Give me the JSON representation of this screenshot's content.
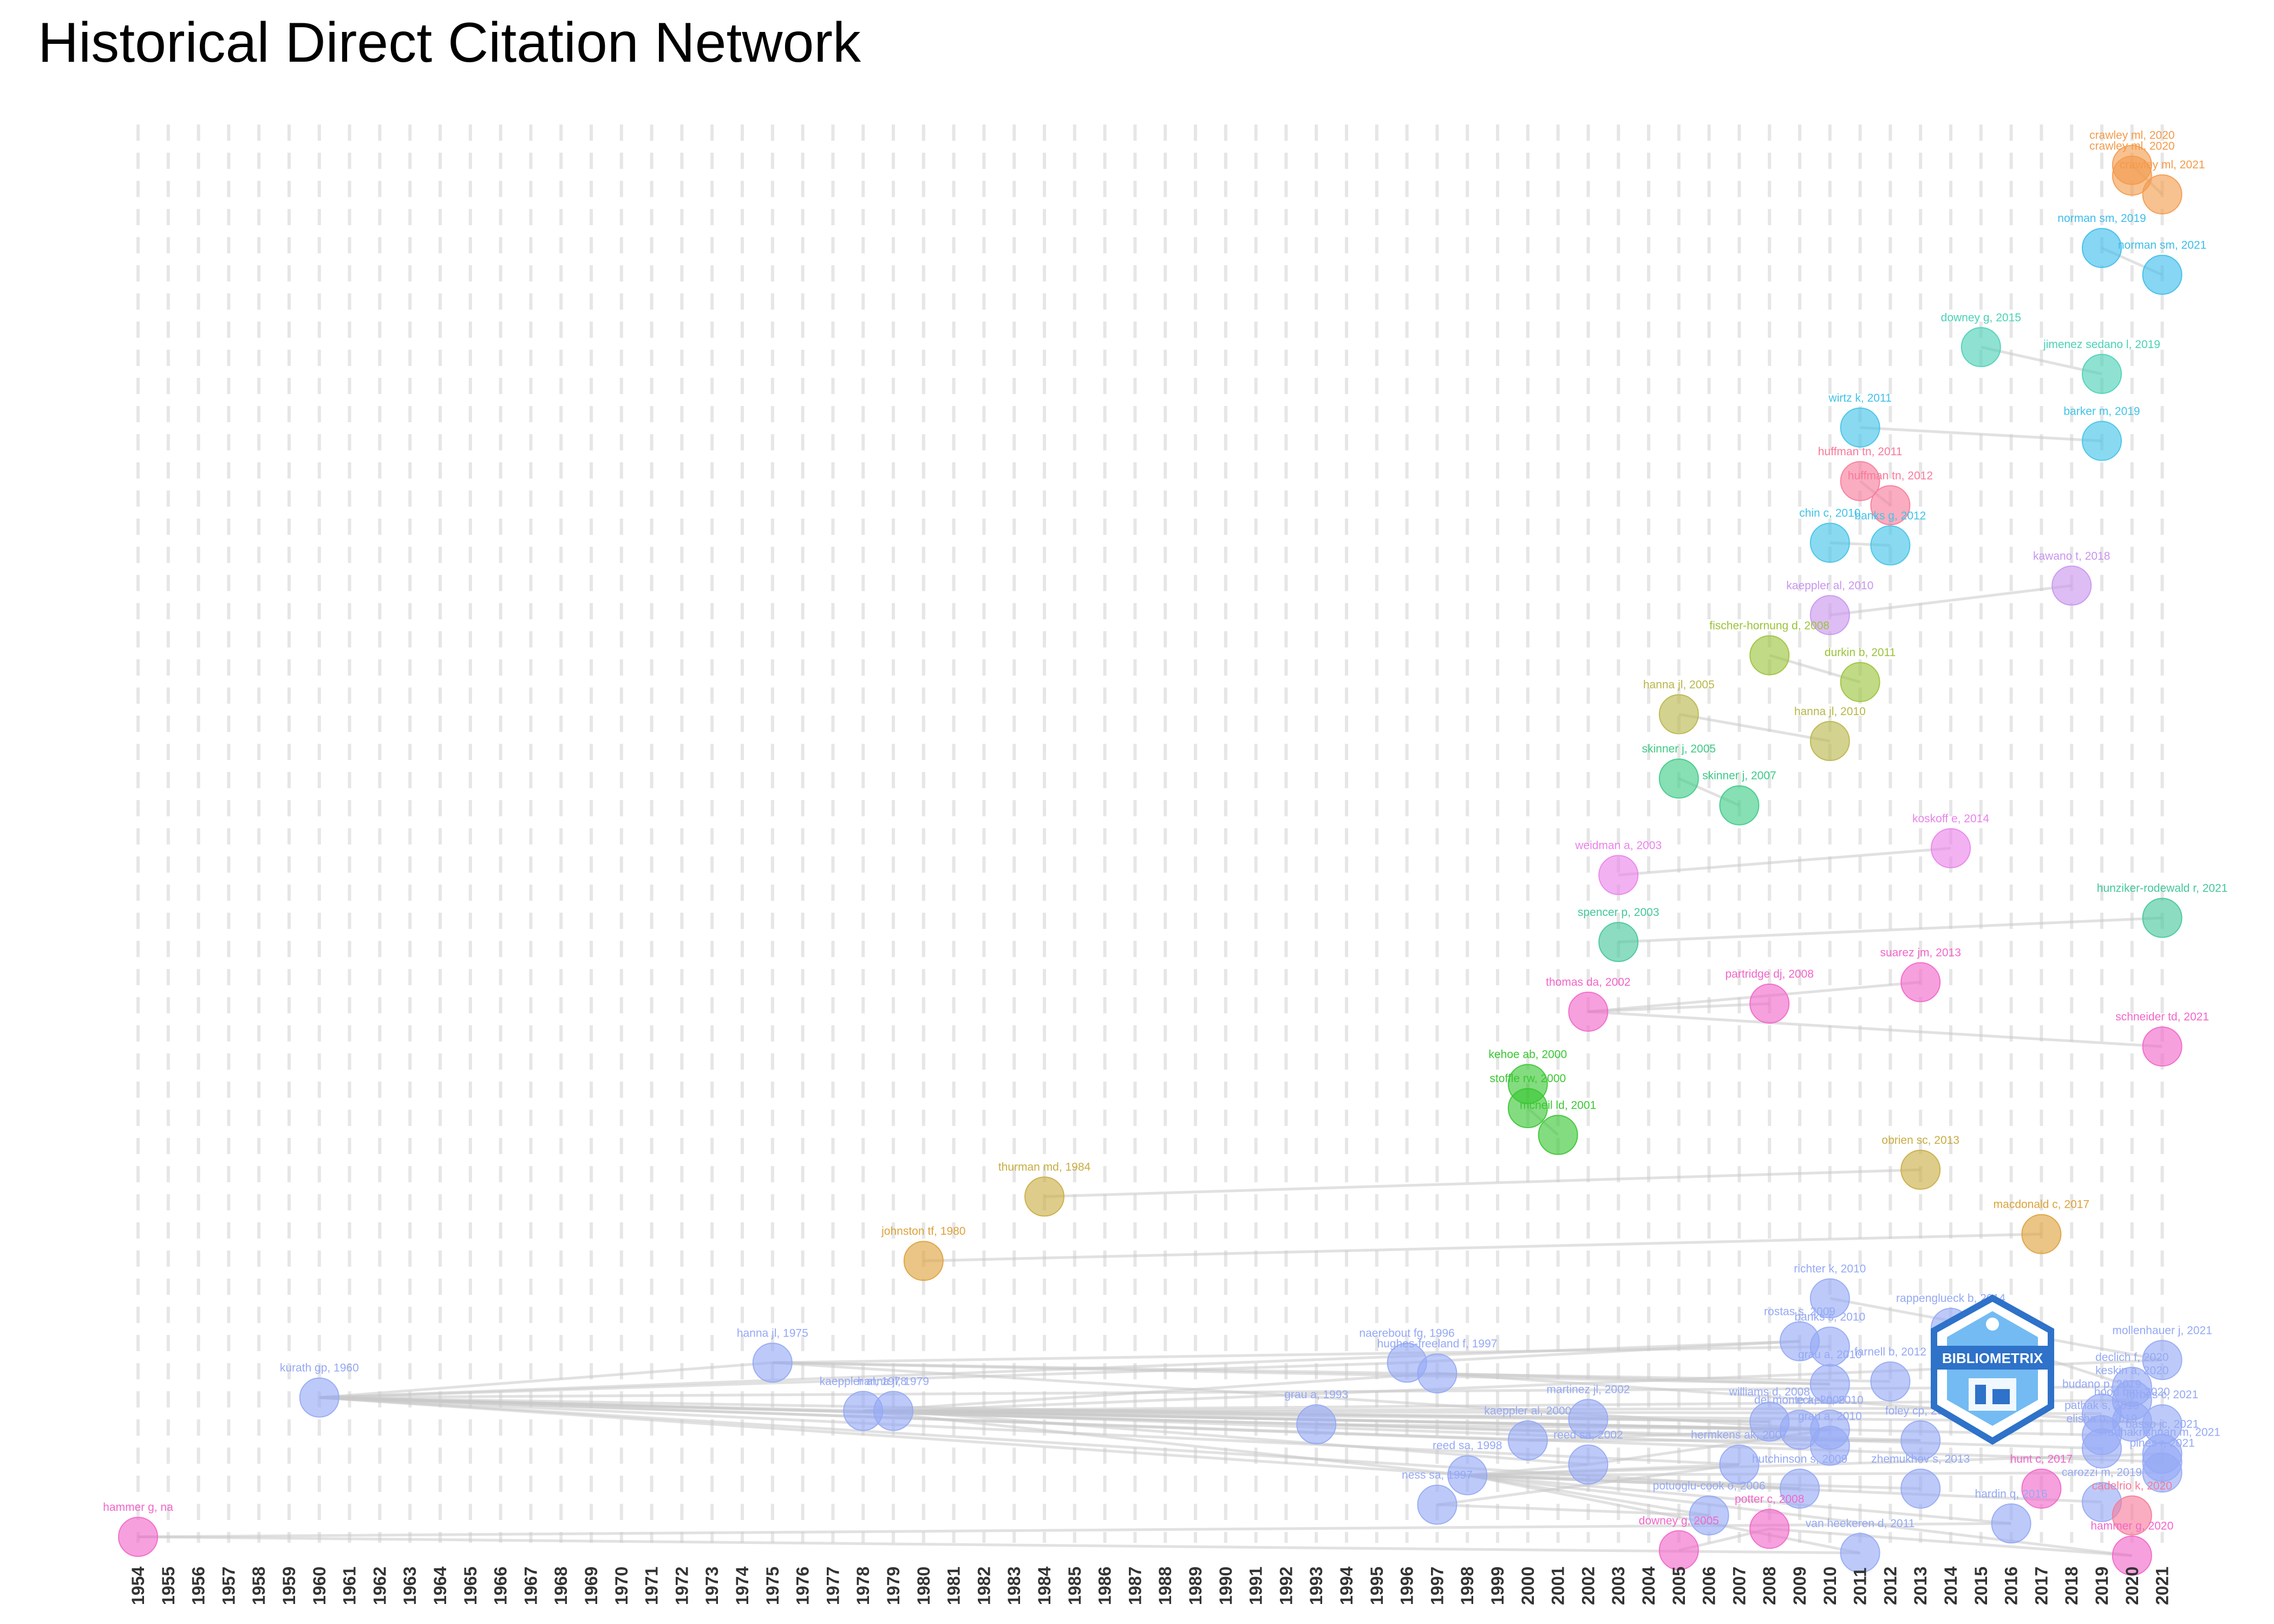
{
  "page": {
    "title": "Historical Direct Citation Network"
  },
  "chart_data": {
    "type": "network",
    "title": "Historical Direct Citation Network",
    "x_axis": {
      "min": 1954,
      "max": 2021,
      "tick_labels": [
        "1954",
        "1955",
        "1956",
        "1957",
        "1958",
        "1959",
        "1960",
        "1961",
        "1962",
        "1963",
        "1964",
        "1965",
        "1966",
        "1967",
        "1968",
        "1969",
        "1970",
        "1971",
        "1972",
        "1973",
        "1974",
        "1975",
        "1976",
        "1977",
        "1978",
        "1979",
        "1980",
        "1981",
        "1982",
        "1983",
        "1984",
        "1985",
        "1986",
        "1987",
        "1988",
        "1989",
        "1990",
        "1991",
        "1992",
        "1993",
        "1994",
        "1995",
        "1996",
        "1997",
        "1998",
        "1999",
        "2000",
        "2001",
        "2002",
        "2003",
        "2004",
        "2005",
        "2006",
        "2007",
        "2008",
        "2009",
        "2010",
        "2011",
        "2012",
        "2013",
        "2014",
        "2015",
        "2016",
        "2017",
        "2018",
        "2019",
        "2020",
        "2021"
      ]
    },
    "grid": true,
    "colors": {
      "orange": "#F39B4C",
      "skyblue": "#3DBDEB",
      "teal": "#4BD1B6",
      "pink_red": "#F77A9A",
      "cyan": "#41C3E8",
      "lavender": "#C895EE",
      "olive_green": "#9BC33A",
      "khaki": "#B9B64A",
      "green": "#3DCB86",
      "magenta": "#EA82EA",
      "sea_green": "#45C79C",
      "hot_pink": "#F266C9",
      "bright_green": "#39C732",
      "gold": "#C9AD42",
      "amber": "#DDA23C",
      "periwinkle": "#95A9F5",
      "edge": "#C8C8C8",
      "logo": "#2E72C9"
    },
    "nodes": [
      {
        "id": "crawley1",
        "label": "crawley ml, 2020",
        "year": 2020,
        "row": 3.7,
        "color": "orange"
      },
      {
        "id": "crawley2",
        "label": "crawley ml, 2020",
        "year": 2020,
        "row": 4.1,
        "color": "orange"
      },
      {
        "id": "crawley3",
        "label": "crawley ml, 2021",
        "year": 2021,
        "row": 4.8,
        "color": "orange"
      },
      {
        "id": "norman2019",
        "label": "norman sm, 2019",
        "year": 2019,
        "row": 6.8,
        "color": "skyblue"
      },
      {
        "id": "norman2021",
        "label": "norman sm, 2021",
        "year": 2021,
        "row": 7.8,
        "color": "skyblue"
      },
      {
        "id": "downey2015",
        "label": "downey g, 2015",
        "year": 2015,
        "row": 10.5,
        "color": "teal"
      },
      {
        "id": "jimenez2019",
        "label": "jimenez sedano l, 2019",
        "year": 2019,
        "row": 11.5,
        "color": "teal"
      },
      {
        "id": "wirtz2011",
        "label": "wirtz k, 2011",
        "year": 2011,
        "row": 13.5,
        "color": "cyan"
      },
      {
        "id": "barker2019",
        "label": "barker m, 2019",
        "year": 2019,
        "row": 14,
        "color": "cyan"
      },
      {
        "id": "huffman2011",
        "label": "huffman tn, 2011",
        "year": 2011,
        "row": 15.5,
        "color": "pink_red"
      },
      {
        "id": "huffman2012",
        "label": "huffman tn, 2012",
        "year": 2012,
        "row": 16.4,
        "color": "pink_red"
      },
      {
        "id": "chin2010",
        "label": "chin c, 2010",
        "year": 2010,
        "row": 17.8,
        "color": "cyan"
      },
      {
        "id": "banks2012",
        "label": "banks g, 2012",
        "year": 2012,
        "row": 17.9,
        "color": "cyan"
      },
      {
        "id": "kawano2018",
        "label": "kawano t, 2018",
        "year": 2018,
        "row": 19.4,
        "color": "lavender"
      },
      {
        "id": "kaeppler2010a",
        "label": "kaeppler al, 2010",
        "year": 2010,
        "row": 20.5,
        "color": "lavender"
      },
      {
        "id": "fischer2008",
        "label": "fischer-hornung d, 2008",
        "year": 2008,
        "row": 22,
        "color": "olive_green"
      },
      {
        "id": "durkin2011",
        "label": "durkin b, 2011",
        "year": 2011,
        "row": 23,
        "color": "olive_green"
      },
      {
        "id": "hanna2005",
        "label": "hanna jl, 2005",
        "year": 2005,
        "row": 24.2,
        "color": "khaki"
      },
      {
        "id": "hanna2010",
        "label": "hanna jl, 2010",
        "year": 2010,
        "row": 25.2,
        "color": "khaki"
      },
      {
        "id": "skinner2005",
        "label": "skinner j, 2005",
        "year": 2005,
        "row": 26.6,
        "color": "green"
      },
      {
        "id": "skinner2007",
        "label": "skinner j, 2007",
        "year": 2007,
        "row": 27.6,
        "color": "green"
      },
      {
        "id": "koskoff2014",
        "label": "koskoff e, 2014",
        "year": 2014,
        "row": 29.2,
        "color": "magenta"
      },
      {
        "id": "weidman2003",
        "label": "weidman a, 2003",
        "year": 2003,
        "row": 30.2,
        "color": "magenta"
      },
      {
        "id": "hunziker2021",
        "label": "hunziker-rodewald r, 2021",
        "year": 2021,
        "row": 31.8,
        "color": "sea_green"
      },
      {
        "id": "spencer2003",
        "label": "spencer p, 2003",
        "year": 2003,
        "row": 32.7,
        "color": "sea_green"
      },
      {
        "id": "suarez2013",
        "label": "suarez jm, 2013",
        "year": 2013,
        "row": 34.2,
        "color": "hot_pink"
      },
      {
        "id": "partridge2008",
        "label": "partridge dj, 2008",
        "year": 2008,
        "row": 35,
        "color": "hot_pink"
      },
      {
        "id": "thomas2002",
        "label": "thomas da, 2002",
        "year": 2002,
        "row": 35.3,
        "color": "hot_pink"
      },
      {
        "id": "schneider2021",
        "label": "schneider td, 2021",
        "year": 2021,
        "row": 36.6,
        "color": "hot_pink"
      },
      {
        "id": "kehoe2000",
        "label": "kehoe ab, 2000",
        "year": 2000,
        "row": 38,
        "color": "bright_green"
      },
      {
        "id": "stoffle2000",
        "label": "stoffle rw, 2000",
        "year": 2000,
        "row": 38.9,
        "color": "bright_green"
      },
      {
        "id": "mcneil2001",
        "label": "mcneil ld, 2001",
        "year": 2001,
        "row": 39.9,
        "color": "bright_green"
      },
      {
        "id": "obrien2013",
        "label": "obrien sc, 2013",
        "year": 2013,
        "row": 41.2,
        "color": "gold"
      },
      {
        "id": "thurman1984",
        "label": "thurman md, 1984",
        "year": 1984,
        "row": 42.2,
        "color": "gold"
      },
      {
        "id": "macdonald2017",
        "label": "macdonald c, 2017",
        "year": 2017,
        "row": 43.6,
        "color": "amber"
      },
      {
        "id": "johnston1980",
        "label": "johnston tf, 1980",
        "year": 1980,
        "row": 44.6,
        "color": "amber"
      },
      {
        "id": "richter2010",
        "label": "richter k, 2010",
        "year": 2010,
        "row": 46,
        "color": "periwinkle"
      },
      {
        "id": "rappenglueck2014",
        "label": "rappenglueck b, 2014",
        "year": 2014,
        "row": 47.1,
        "color": "periwinkle"
      },
      {
        "id": "rostas2009",
        "label": "rostas s, 2009",
        "year": 2009,
        "row": 47.6,
        "color": "periwinkle"
      },
      {
        "id": "banks2010",
        "label": "banks s, 2010",
        "year": 2010,
        "row": 47.8,
        "color": "periwinkle"
      },
      {
        "id": "mollenhauer2021",
        "label": "mollenhauer j, 2021",
        "year": 2021,
        "row": 48.3,
        "color": "periwinkle"
      },
      {
        "id": "hanna1975",
        "label": "hanna jl, 1975",
        "year": 1975,
        "row": 48.4,
        "color": "periwinkle"
      },
      {
        "id": "naerebout1996",
        "label": "naerebout fg, 1996",
        "year": 1996,
        "row": 48.4,
        "color": "periwinkle"
      },
      {
        "id": "hughes1997",
        "label": "hughes-freeland f, 1997",
        "year": 1997,
        "row": 48.8,
        "color": "periwinkle"
      },
      {
        "id": "grau2010",
        "label": "grau a, 2010",
        "year": 2010,
        "row": 49.2,
        "color": "periwinkle"
      },
      {
        "id": "farnell2012",
        "label": "farnell b, 2012",
        "year": 2012,
        "row": 49.1,
        "color": "periwinkle"
      },
      {
        "id": "declich2020",
        "label": "declich f, 2020",
        "year": 2020,
        "row": 49.3,
        "color": "periwinkle"
      },
      {
        "id": "kurath1960",
        "label": "kurath gp, 1960",
        "year": 1960,
        "row": 49.7,
        "color": "periwinkle"
      },
      {
        "id": "keskin2020",
        "label": "keskin a, 2020",
        "year": 2020,
        "row": 49.8,
        "color": "periwinkle"
      },
      {
        "id": "rakocevic2015",
        "label": "rakocevic s, 2015",
        "year": 2015,
        "row": 50.1,
        "color": "periwinkle"
      },
      {
        "id": "kaeppler1978",
        "label": "kaeppler al, 1978",
        "year": 1978,
        "row": 50.2,
        "color": "periwinkle"
      },
      {
        "id": "hanna1979",
        "label": "hanna jl, 1979",
        "year": 1979,
        "row": 50.2,
        "color": "periwinkle"
      },
      {
        "id": "martinez2002",
        "label": "martinez jl, 2002",
        "year": 2002,
        "row": 50.5,
        "color": "periwinkle"
      },
      {
        "id": "budano2019",
        "label": "budano p, 2019",
        "year": 2019,
        "row": 50.3,
        "color": "periwinkle"
      },
      {
        "id": "grau1993",
        "label": "grau a, 1993",
        "year": 1993,
        "row": 50.7,
        "color": "periwinkle"
      },
      {
        "id": "williams2008",
        "label": "williams d, 2008",
        "year": 2008,
        "row": 50.6,
        "color": "periwinkle"
      },
      {
        "id": "delmonte2009",
        "label": "del monte a, 2009",
        "year": 2009,
        "row": 50.9,
        "color": "periwinkle"
      },
      {
        "id": "eckel2010",
        "label": "eckel c, 2010",
        "year": 2010,
        "row": 50.9,
        "color": "periwinkle"
      },
      {
        "id": "foley2013",
        "label": "foley cp, 2013",
        "year": 2013,
        "row": 51.3,
        "color": "periwinkle"
      },
      {
        "id": "hood2020",
        "label": "hood bm, 2020",
        "year": 2020,
        "row": 50.6,
        "color": "periwinkle"
      },
      {
        "id": "forbes2021",
        "label": "forbes c, 2021",
        "year": 2021,
        "row": 50.7,
        "color": "periwinkle"
      },
      {
        "id": "pathak2019",
        "label": "pathak s, 2019",
        "year": 2019,
        "row": 51.1,
        "color": "periwinkle"
      },
      {
        "id": "kaeppler2000",
        "label": "kaeppler al, 2000",
        "year": 2000,
        "row": 51.3,
        "color": "periwinkle"
      },
      {
        "id": "grau2010b",
        "label": "grau a, 2010",
        "year": 2010,
        "row": 51.5,
        "color": "periwinkle"
      },
      {
        "id": "elisha2019",
        "label": "elisha o, 2019",
        "year": 2019,
        "row": 51.6,
        "color": "periwinkle"
      },
      {
        "id": "basso2021",
        "label": "basso jc, 2021",
        "year": 2021,
        "row": 51.8,
        "color": "periwinkle"
      },
      {
        "id": "reedsa2002",
        "label": "reed sa, 2002",
        "year": 2002,
        "row": 52.2,
        "color": "periwinkle"
      },
      {
        "id": "hermkens2007",
        "label": "hermkens ak, 2007",
        "year": 2007,
        "row": 52.2,
        "color": "periwinkle"
      },
      {
        "id": "radhakrishnan2021",
        "label": "radhakrishnan m, 2021",
        "year": 2021,
        "row": 52.1,
        "color": "periwinkle"
      },
      {
        "id": "reed1998",
        "label": "reed sa, 1998",
        "year": 1998,
        "row": 52.6,
        "color": "periwinkle"
      },
      {
        "id": "pines2021",
        "label": "pines r, 2021",
        "year": 2021,
        "row": 52.5,
        "color": "periwinkle"
      },
      {
        "id": "hutchinson2009",
        "label": "hutchinson s, 2009",
        "year": 2009,
        "row": 53.1,
        "color": "periwinkle"
      },
      {
        "id": "zhemukhov2013",
        "label": "zhemukhov s, 2013",
        "year": 2013,
        "row": 53.1,
        "color": "periwinkle"
      },
      {
        "id": "hunt2017",
        "label": "hunt c, 2017",
        "year": 2017,
        "row": 53.1,
        "color": "hot_pink"
      },
      {
        "id": "ness1997",
        "label": "ness sa, 1997",
        "year": 1997,
        "row": 53.7,
        "color": "periwinkle"
      },
      {
        "id": "carozzi2019",
        "label": "carozzi m, 2019",
        "year": 2019,
        "row": 53.6,
        "color": "periwinkle"
      },
      {
        "id": "potuoglu2006",
        "label": "potuoglu-cook o, 2006",
        "year": 2006,
        "row": 54.1,
        "color": "periwinkle"
      },
      {
        "id": "cadelrio2020",
        "label": "cadelrio k, 2020",
        "year": 2020,
        "row": 54.1,
        "color": "pink_red"
      },
      {
        "id": "hardinqf2016",
        "label": "hardin q, 2016",
        "year": 2016,
        "row": 54.4,
        "color": "periwinkle"
      },
      {
        "id": "potter2008",
        "label": "potter c, 2008",
        "year": 2008,
        "row": 54.6,
        "color": "hot_pink"
      },
      {
        "id": "hammerna",
        "label": "hammer g, na",
        "year": 1954,
        "row": 54.9,
        "color": "hot_pink"
      },
      {
        "id": "vanheekeren2011",
        "label": "van heekeren d, 2011",
        "year": 2011,
        "row": 55.5,
        "color": "periwinkle"
      },
      {
        "id": "downey2005",
        "label": "downey g, 2005",
        "year": 2005,
        "row": 55.4,
        "color": "hot_pink"
      },
      {
        "id": "hammer2020",
        "label": "hammer g, 2020",
        "year": 2020,
        "row": 55.6,
        "color": "hot_pink"
      }
    ],
    "edges": [
      [
        "crawley1",
        "crawley3"
      ],
      [
        "norman2019",
        "norman2021"
      ],
      [
        "downey2015",
        "jimenez2019"
      ],
      [
        "wirtz2011",
        "barker2019"
      ],
      [
        "huffman2011",
        "huffman2012"
      ],
      [
        "chin2010",
        "banks2012"
      ],
      [
        "kaeppler2010a",
        "kawano2018"
      ],
      [
        "fischer2008",
        "durkin2011"
      ],
      [
        "hanna2005",
        "hanna2010"
      ],
      [
        "skinner2005",
        "skinner2007"
      ],
      [
        "weidman2003",
        "koskoff2014"
      ],
      [
        "spencer2003",
        "hunziker2021"
      ],
      [
        "thomas2002",
        "partridge2008"
      ],
      [
        "thomas2002",
        "suarez2013"
      ],
      [
        "thomas2002",
        "schneider2021"
      ],
      [
        "kehoe2000",
        "stoffle2000"
      ],
      [
        "stoffle2000",
        "mcneil2001"
      ],
      [
        "thurman1984",
        "obrien2013"
      ],
      [
        "johnston1980",
        "macdonald2017"
      ],
      [
        "hammerna",
        "hardinqf2016"
      ],
      [
        "hammerna",
        "vanheekeren2011"
      ],
      [
        "kurath1960",
        "kaeppler1978"
      ],
      [
        "kurath1960",
        "hanna1975"
      ],
      [
        "kurath1960",
        "naerebout1996"
      ],
      [
        "kurath1960",
        "grau1993"
      ],
      [
        "kurath1960",
        "reed1998"
      ],
      [
        "kurath1960",
        "kaeppler2000"
      ],
      [
        "kurath1960",
        "williams2008"
      ],
      [
        "kurath1960",
        "rostas2009"
      ],
      [
        "kurath1960",
        "foley2013"
      ],
      [
        "kurath1960",
        "declich2020"
      ],
      [
        "kurath1960",
        "hermkens2007"
      ],
      [
        "kurath1960",
        "hutchinson2009"
      ],
      [
        "kurath1960",
        "radhakrishnan2021"
      ],
      [
        "hanna1975",
        "grau2010"
      ],
      [
        "hanna1975",
        "farnell2012"
      ],
      [
        "hanna1975",
        "eckel2010"
      ],
      [
        "hanna1975",
        "banks2010"
      ],
      [
        "kaeppler1978",
        "hughes1997"
      ],
      [
        "kaeppler1978",
        "reed1998"
      ],
      [
        "kaeppler1978",
        "martinez2002"
      ],
      [
        "kaeppler1978",
        "eckel2010"
      ],
      [
        "kaeppler1978",
        "grau2010b"
      ],
      [
        "kaeppler1978",
        "rakocevic2015"
      ],
      [
        "kaeppler1978",
        "keskin2020"
      ],
      [
        "kaeppler1978",
        "budano2019"
      ],
      [
        "hanna1979",
        "mollenhauer2021"
      ],
      [
        "hanna1979",
        "delmonte2009"
      ],
      [
        "hanna1979",
        "pathak2019"
      ],
      [
        "hanna1979",
        "hood2020"
      ],
      [
        "hanna1979",
        "reedsa2002"
      ],
      [
        "grau1993",
        "eckel2010"
      ],
      [
        "grau1993",
        "elisha2019"
      ],
      [
        "naerebout1996",
        "rostas2009"
      ],
      [
        "hughes1997",
        "grau2010"
      ],
      [
        "hughes1997",
        "forbes2021"
      ],
      [
        "reed1998",
        "reedsa2002"
      ],
      [
        "reed1998",
        "hermkens2007"
      ],
      [
        "reed1998",
        "hutchinson2009"
      ],
      [
        "reed1998",
        "potuoglu2006"
      ],
      [
        "reed1998",
        "zhemukhov2013"
      ],
      [
        "reed1998",
        "carozzi2019"
      ],
      [
        "reed1998",
        "basso2021"
      ],
      [
        "reed1998",
        "pines2021"
      ],
      [
        "reed1998",
        "hardinqf2016"
      ],
      [
        "reed1998",
        "vanheekeren2011"
      ],
      [
        "reed1998",
        "hammer2020"
      ],
      [
        "ness1997",
        "potuoglu2006"
      ],
      [
        "ness1997",
        "hermkens2007"
      ],
      [
        "kaeppler2000",
        "delmonte2009"
      ],
      [
        "kaeppler2000",
        "foley2013"
      ],
      [
        "martinez2002",
        "williams2008"
      ],
      [
        "richter2010",
        "mollenhauer2021"
      ],
      [
        "rappenglueck2014",
        "declich2020"
      ],
      [
        "downey2005",
        "potter2008"
      ],
      [
        "potter2008",
        "hammer2020"
      ],
      [
        "reedsa2002",
        "eckel2010"
      ]
    ],
    "logo_text": "BIBLIOMETRIX"
  }
}
